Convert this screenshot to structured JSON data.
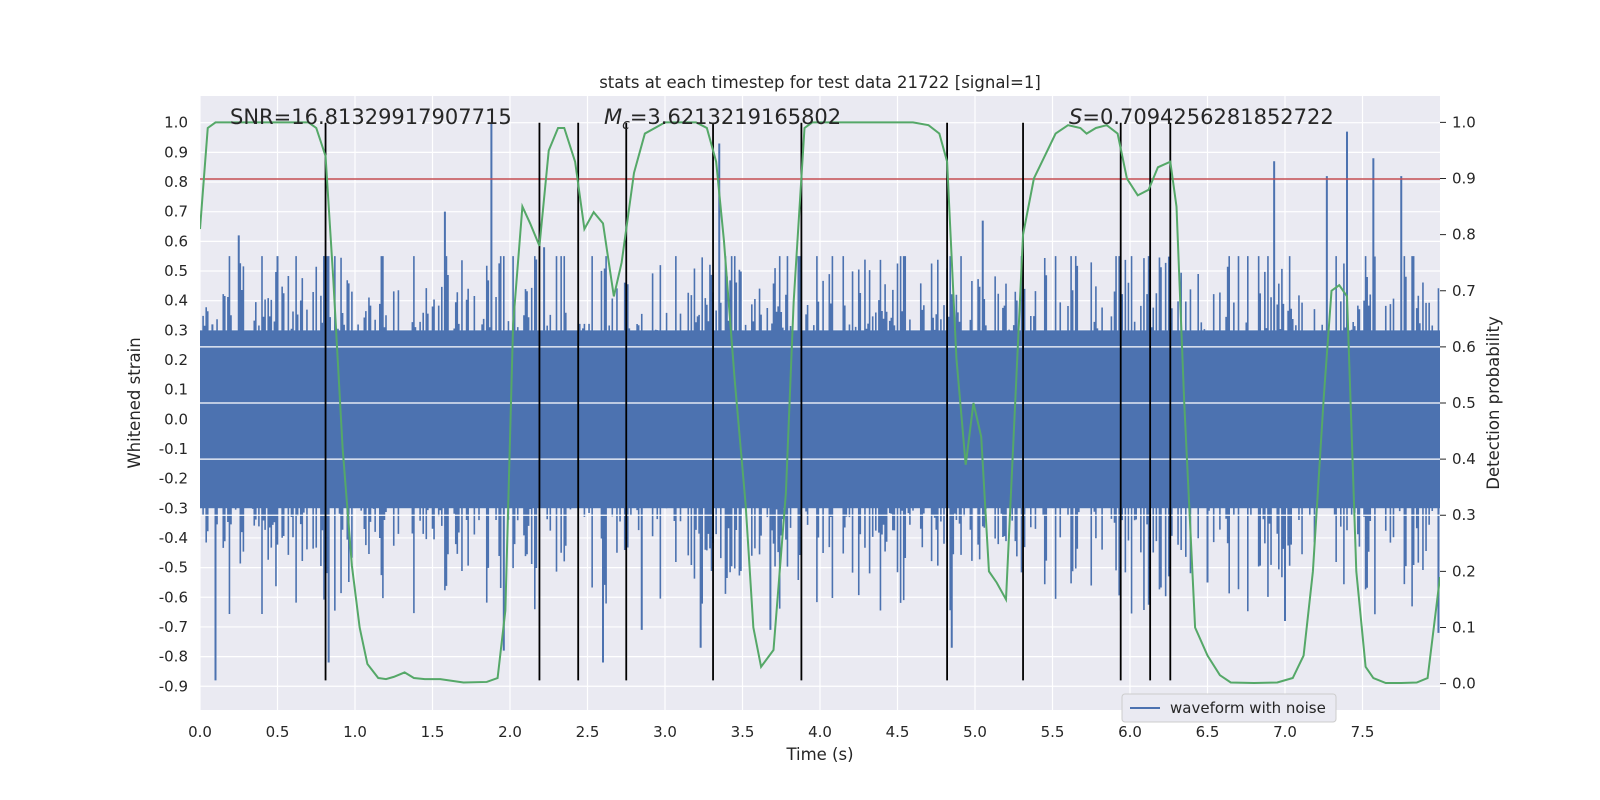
{
  "chart_data": {
    "type": "line",
    "title": "stats at each timestep for test data 21722 [signal=1]",
    "xlabel": "Time (s)",
    "ylabel": "Whitened strain",
    "y2label": "Detection probability",
    "xlim": [
      0.0,
      8.0
    ],
    "ylim": [
      -0.98,
      1.09
    ],
    "y2lim": [
      -0.047,
      1.047
    ],
    "xticks": [
      0.0,
      0.5,
      1.0,
      1.5,
      2.0,
      2.5,
      3.0,
      3.5,
      4.0,
      4.5,
      5.0,
      5.5,
      6.0,
      6.5,
      7.0,
      7.5
    ],
    "xtick_labels": [
      "0.0",
      "0.5",
      "1.0",
      "1.5",
      "2.0",
      "2.5",
      "3.0",
      "3.5",
      "4.0",
      "4.5",
      "5.0",
      "5.5",
      "6.0",
      "6.5",
      "7.0",
      "7.5"
    ],
    "yticks": [
      1.0,
      0.9,
      0.8,
      0.7,
      0.6,
      0.5,
      0.4,
      0.3,
      0.2,
      0.1,
      0.0,
      -0.1,
      -0.2,
      -0.3,
      -0.4,
      -0.5,
      -0.6,
      -0.7,
      -0.8,
      -0.9
    ],
    "ytick_labels": [
      "1.0",
      "0.9",
      "0.8",
      "0.7",
      "0.6",
      "0.5",
      "0.4",
      "0.3",
      "0.2",
      "0.1",
      "0.0",
      "-0.1",
      "-0.2",
      "-0.3",
      "-0.4",
      "-0.5",
      "-0.6",
      "-0.7",
      "-0.8",
      "-0.9"
    ],
    "y2ticks": [
      1.0,
      0.9,
      0.8,
      0.7,
      0.6,
      0.5,
      0.4,
      0.3,
      0.2,
      0.1,
      0.0
    ],
    "y2tick_labels": [
      "1.0",
      "0.9",
      "0.8",
      "0.7",
      "0.6",
      "0.5",
      "0.4",
      "0.3",
      "0.2",
      "0.1",
      "0.0"
    ],
    "grid": true,
    "legend": {
      "entries": [
        "waveform with noise"
      ],
      "placement": "bottom-right"
    },
    "annotations": {
      "snr": "SNR=16.81329917907715",
      "mc_symbol": "M",
      "mc_sub": "c",
      "mc_value": "=3.6213219165802",
      "s_symbol": "S",
      "s_value": "=0.7094256281852722"
    },
    "threshold": {
      "value": 0.81,
      "color": "#c44e52"
    },
    "event_lines": {
      "x": [
        0.81,
        2.19,
        2.44,
        2.75,
        3.31,
        3.88,
        4.82,
        5.31,
        5.94,
        6.13,
        6.26
      ],
      "ymin": -0.88,
      "ymax": 1.0,
      "color": "#000000"
    },
    "waveform": {
      "name": "waveform with noise",
      "color": "#4c72b0",
      "n_samples": 800,
      "band_std": 0.23,
      "spikes": [
        {
          "x": 0.08,
          "y": 0.32
        },
        {
          "x": 0.1,
          "y": -0.88
        },
        {
          "x": 0.25,
          "y": 0.62
        },
        {
          "x": 0.5,
          "y": 0.55
        },
        {
          "x": 0.8,
          "y": 0.55
        },
        {
          "x": 0.83,
          "y": -0.82
        },
        {
          "x": 1.58,
          "y": 0.7
        },
        {
          "x": 1.88,
          "y": 1.0
        },
        {
          "x": 1.96,
          "y": -0.78
        },
        {
          "x": 2.22,
          "y": 0.58
        },
        {
          "x": 2.6,
          "y": -0.82
        },
        {
          "x": 2.85,
          "y": -0.71
        },
        {
          "x": 3.23,
          "y": -0.77
        },
        {
          "x": 3.35,
          "y": 0.93
        },
        {
          "x": 3.68,
          "y": -0.71
        },
        {
          "x": 4.85,
          "y": -0.77
        },
        {
          "x": 5.05,
          "y": 0.67
        },
        {
          "x": 6.5,
          "y": -0.55
        },
        {
          "x": 6.93,
          "y": 0.87
        },
        {
          "x": 7.0,
          "y": -0.68
        },
        {
          "x": 7.27,
          "y": 0.82
        },
        {
          "x": 7.4,
          "y": 0.97
        },
        {
          "x": 7.57,
          "y": 0.88
        },
        {
          "x": 7.75,
          "y": 0.82
        },
        {
          "x": 7.99,
          "y": -0.72
        }
      ]
    },
    "probability": {
      "name": "Detection probability",
      "color": "#55a868",
      "points": [
        [
          0.0,
          0.81
        ],
        [
          0.05,
          0.99
        ],
        [
          0.1,
          1.0
        ],
        [
          0.3,
          1.0
        ],
        [
          0.7,
          1.0
        ],
        [
          0.75,
          0.99
        ],
        [
          0.81,
          0.94
        ],
        [
          0.86,
          0.72
        ],
        [
          0.92,
          0.42
        ],
        [
          0.98,
          0.21
        ],
        [
          1.03,
          0.1
        ],
        [
          1.08,
          0.035
        ],
        [
          1.15,
          0.01
        ],
        [
          1.2,
          0.008
        ],
        [
          1.25,
          0.012
        ],
        [
          1.32,
          0.02
        ],
        [
          1.38,
          0.01
        ],
        [
          1.45,
          0.008
        ],
        [
          1.55,
          0.008
        ],
        [
          1.7,
          0.002
        ],
        [
          1.85,
          0.003
        ],
        [
          1.92,
          0.01
        ],
        [
          1.97,
          0.13
        ],
        [
          2.02,
          0.64
        ],
        [
          2.08,
          0.85
        ],
        [
          2.13,
          0.82
        ],
        [
          2.19,
          0.78
        ],
        [
          2.25,
          0.95
        ],
        [
          2.31,
          0.99
        ],
        [
          2.35,
          0.99
        ],
        [
          2.42,
          0.93
        ],
        [
          2.48,
          0.81
        ],
        [
          2.54,
          0.84
        ],
        [
          2.6,
          0.82
        ],
        [
          2.67,
          0.69
        ],
        [
          2.72,
          0.75
        ],
        [
          2.8,
          0.91
        ],
        [
          2.87,
          0.98
        ],
        [
          3.0,
          1.0
        ],
        [
          3.2,
          1.0
        ],
        [
          3.27,
          0.99
        ],
        [
          3.33,
          0.93
        ],
        [
          3.38,
          0.79
        ],
        [
          3.45,
          0.54
        ],
        [
          3.52,
          0.32
        ],
        [
          3.57,
          0.1
        ],
        [
          3.62,
          0.03
        ],
        [
          3.7,
          0.06
        ],
        [
          3.78,
          0.34
        ],
        [
          3.83,
          0.68
        ],
        [
          3.9,
          0.99
        ],
        [
          3.95,
          1.0
        ],
        [
          4.0,
          1.0
        ],
        [
          4.6,
          1.0
        ],
        [
          4.7,
          0.995
        ],
        [
          4.77,
          0.98
        ],
        [
          4.82,
          0.93
        ],
        [
          4.88,
          0.58
        ],
        [
          4.94,
          0.39
        ],
        [
          4.99,
          0.5
        ],
        [
          5.04,
          0.44
        ],
        [
          5.09,
          0.2
        ],
        [
          5.14,
          0.18
        ],
        [
          5.2,
          0.15
        ],
        [
          5.31,
          0.8
        ],
        [
          5.38,
          0.9
        ],
        [
          5.45,
          0.94
        ],
        [
          5.52,
          0.98
        ],
        [
          5.6,
          0.995
        ],
        [
          5.68,
          0.99
        ],
        [
          5.72,
          0.98
        ],
        [
          5.78,
          0.99
        ],
        [
          5.85,
          0.995
        ],
        [
          5.92,
          0.98
        ],
        [
          5.98,
          0.9
        ],
        [
          6.05,
          0.87
        ],
        [
          6.12,
          0.88
        ],
        [
          6.18,
          0.92
        ],
        [
          6.26,
          0.93
        ],
        [
          6.3,
          0.85
        ],
        [
          6.35,
          0.5
        ],
        [
          6.42,
          0.1
        ],
        [
          6.5,
          0.05
        ],
        [
          6.58,
          0.015
        ],
        [
          6.65,
          0.002
        ],
        [
          6.8,
          0.001
        ],
        [
          6.95,
          0.002
        ],
        [
          7.05,
          0.01
        ],
        [
          7.12,
          0.05
        ],
        [
          7.18,
          0.2
        ],
        [
          7.25,
          0.51
        ],
        [
          7.3,
          0.7
        ],
        [
          7.35,
          0.71
        ],
        [
          7.4,
          0.69
        ],
        [
          7.46,
          0.2
        ],
        [
          7.52,
          0.03
        ],
        [
          7.57,
          0.01
        ],
        [
          7.65,
          0.001
        ],
        [
          7.75,
          0.001
        ],
        [
          7.85,
          0.002
        ],
        [
          7.92,
          0.01
        ],
        [
          8.0,
          0.19
        ]
      ]
    }
  }
}
